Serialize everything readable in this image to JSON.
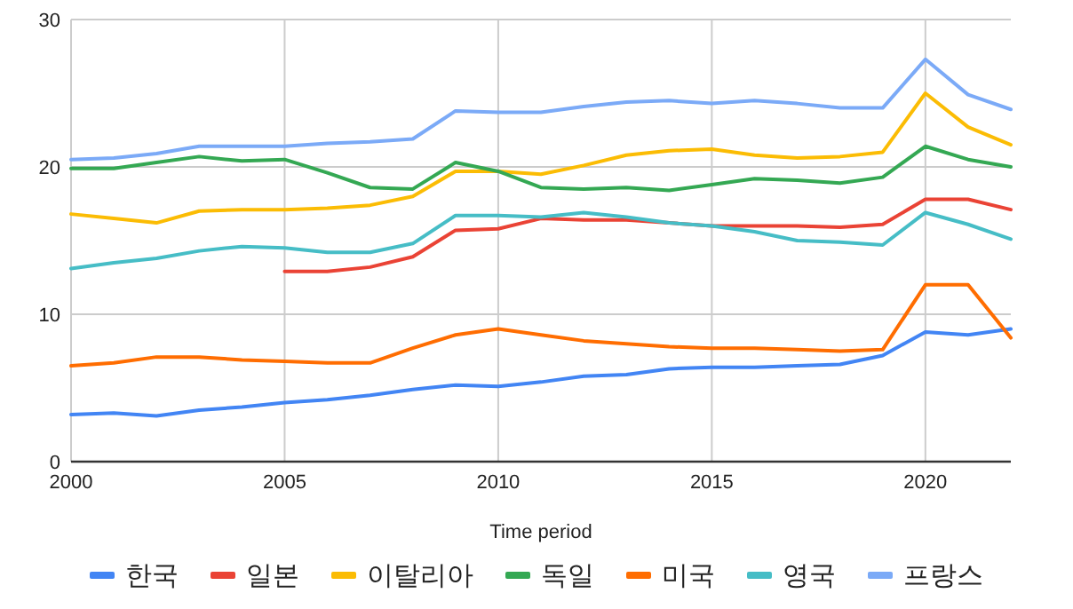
{
  "chart_data": {
    "type": "line",
    "xlabel": "Time period",
    "x": [
      2000,
      2001,
      2002,
      2003,
      2004,
      2005,
      2006,
      2007,
      2008,
      2009,
      2010,
      2011,
      2012,
      2013,
      2014,
      2015,
      2016,
      2017,
      2018,
      2019,
      2020,
      2021,
      2022
    ],
    "xlim": [
      2000,
      2022
    ],
    "ylim": [
      0,
      30
    ],
    "xticks": [
      2000,
      2005,
      2010,
      2015,
      2020
    ],
    "yticks": [
      0,
      10,
      20,
      30
    ],
    "grid": true,
    "legend": "bottom",
    "series": [
      {
        "name": "한국",
        "color": "#4285f4",
        "values": [
          3.2,
          3.3,
          3.1,
          3.5,
          3.7,
          4.0,
          4.2,
          4.5,
          4.9,
          5.2,
          5.1,
          5.4,
          5.8,
          5.9,
          6.3,
          6.4,
          6.4,
          6.5,
          6.6,
          7.2,
          8.8,
          8.6,
          9.0
        ]
      },
      {
        "name": "일본",
        "color": "#ea4335",
        "values": [
          null,
          null,
          null,
          null,
          null,
          12.9,
          12.9,
          13.2,
          13.9,
          15.7,
          15.8,
          16.5,
          16.4,
          16.4,
          16.2,
          16.0,
          16.0,
          16.0,
          15.9,
          16.1,
          17.8,
          17.8,
          17.1
        ]
      },
      {
        "name": "이탈리아",
        "color": "#fbbc04",
        "values": [
          16.8,
          16.5,
          16.2,
          17.0,
          17.1,
          17.1,
          17.2,
          17.4,
          18.0,
          19.7,
          19.7,
          19.5,
          20.1,
          20.8,
          21.1,
          21.2,
          20.8,
          20.6,
          20.7,
          21.0,
          25.0,
          22.7,
          21.5
        ]
      },
      {
        "name": "독일",
        "color": "#34a853",
        "values": [
          19.9,
          19.9,
          20.3,
          20.7,
          20.4,
          20.5,
          19.6,
          18.6,
          18.5,
          20.3,
          19.7,
          18.6,
          18.5,
          18.6,
          18.4,
          18.8,
          19.2,
          19.1,
          18.9,
          19.3,
          21.4,
          20.5,
          20.0
        ]
      },
      {
        "name": "미국",
        "color": "#ff6d01",
        "values": [
          6.5,
          6.7,
          7.1,
          7.1,
          6.9,
          6.8,
          6.7,
          6.7,
          7.7,
          8.6,
          9.0,
          8.6,
          8.2,
          8.0,
          7.8,
          7.7,
          7.7,
          7.6,
          7.5,
          7.6,
          12.0,
          12.0,
          8.4
        ]
      },
      {
        "name": "영국",
        "color": "#46bdc6",
        "values": [
          13.1,
          13.5,
          13.8,
          14.3,
          14.6,
          14.5,
          14.2,
          14.2,
          14.8,
          16.7,
          16.7,
          16.6,
          16.9,
          16.6,
          16.2,
          16.0,
          15.6,
          15.0,
          14.9,
          14.7,
          16.9,
          16.1,
          15.1
        ]
      },
      {
        "name": "프랑스",
        "color": "#7baaf7",
        "values": [
          20.5,
          20.6,
          20.9,
          21.4,
          21.4,
          21.4,
          21.6,
          21.7,
          21.9,
          23.8,
          23.7,
          23.7,
          24.1,
          24.4,
          24.5,
          24.3,
          24.5,
          24.3,
          24.0,
          24.0,
          27.3,
          24.9,
          23.9
        ]
      }
    ]
  }
}
